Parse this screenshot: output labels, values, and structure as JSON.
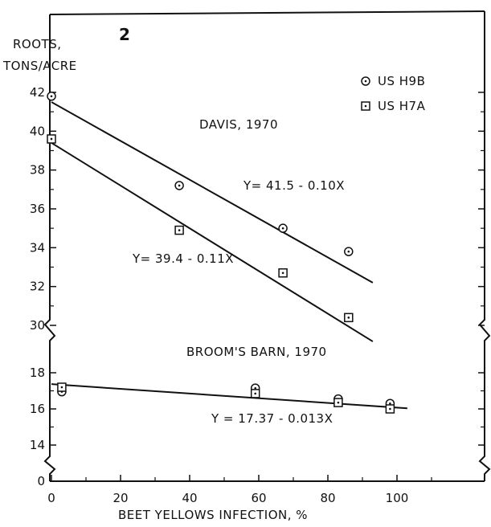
{
  "chart_data": {
    "type": "scatter",
    "panel_label": "2",
    "ylabel_line1": "ROOTS,",
    "ylabel_line2": "TONS/ACRE",
    "xlabel": "BEET YELLOWS INFECTION, %",
    "xlim": [
      0,
      110
    ],
    "x_ticks": [
      "0",
      "20",
      "40",
      "60",
      "80",
      "100"
    ],
    "y_ticks_upper": [
      "30",
      "32",
      "34",
      "36",
      "38",
      "40",
      "42"
    ],
    "y_ticks_lower": [
      "0",
      "14",
      "16",
      "18"
    ],
    "y_axis_break": true,
    "legend": {
      "placement": "top-right",
      "entries": [
        {
          "name": "US H9B",
          "marker": "circle-dot"
        },
        {
          "name": "US H7A",
          "marker": "square-dot"
        }
      ]
    },
    "panels": [
      {
        "location_label": "DAVIS, 1970",
        "series": [
          {
            "name": "US H9B",
            "marker": "circle-dot",
            "points": [
              [
                0,
                41.8
              ],
              [
                37,
                37.2
              ],
              [
                67,
                35.0
              ],
              [
                86,
                33.8
              ]
            ],
            "fit": {
              "label": "Y= 41.5 - 0.10X",
              "intercept": 41.5,
              "slope": -0.1,
              "x_range": [
                0,
                93
              ]
            }
          },
          {
            "name": "US H7A",
            "marker": "square-dot",
            "points": [
              [
                0,
                39.6
              ],
              [
                37,
                34.9
              ],
              [
                67,
                32.7
              ],
              [
                86,
                30.4
              ]
            ],
            "fit": {
              "label": "Y= 39.4 - 0.11X",
              "intercept": 39.4,
              "slope": -0.11,
              "x_range": [
                0,
                93
              ]
            }
          }
        ]
      },
      {
        "location_label": "BROOM'S BARN, 1970",
        "series": [
          {
            "name": "US H9B",
            "marker": "circle-dot",
            "points": [
              [
                3,
                16.95
              ],
              [
                59,
                17.15
              ],
              [
                83,
                16.55
              ],
              [
                98,
                16.3
              ]
            ]
          },
          {
            "name": "US H7A",
            "marker": "square-dot",
            "points": [
              [
                3,
                17.2
              ],
              [
                59,
                16.85
              ],
              [
                83,
                16.35
              ],
              [
                98,
                16.0
              ]
            ]
          }
        ],
        "fit": {
          "label": "Y = 17.37 - 0.013X",
          "intercept": 17.37,
          "slope": -0.013,
          "x_range": [
            0,
            103
          ]
        }
      }
    ]
  }
}
